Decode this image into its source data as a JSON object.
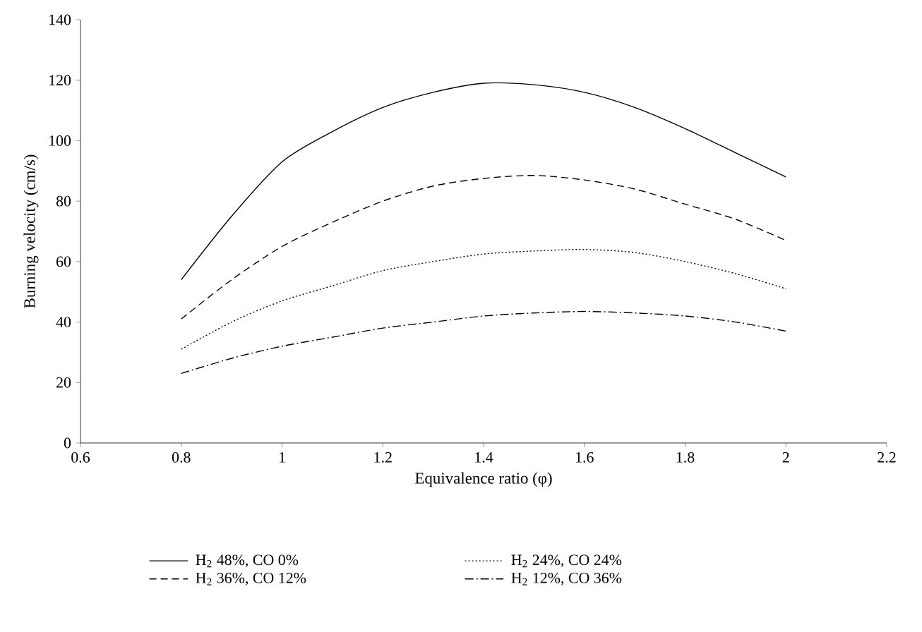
{
  "chart_data": {
    "type": "line",
    "xlabel": "Equivalence ratio (φ)",
    "ylabel": "Burning velocity (cm/s)",
    "x": [
      0.8,
      0.9,
      1.0,
      1.1,
      1.2,
      1.3,
      1.4,
      1.5,
      1.6,
      1.7,
      1.8,
      1.9,
      2.0
    ],
    "series": [
      {
        "name": "H$_{2}$ 48%, CO 0%",
        "color": "#000000",
        "line_style": "solid",
        "values": [
          54,
          75,
          93,
          103,
          111,
          116,
          119,
          118.5,
          116,
          111,
          104,
          96,
          88
        ]
      },
      {
        "name": "H$_{2}$ 36%, CO 12%",
        "color": "#000000",
        "line_style": "dashed",
        "values": [
          41,
          54,
          65,
          73,
          80,
          85,
          87.5,
          88.5,
          87,
          84,
          79,
          74,
          67
        ]
      },
      {
        "name": "H$_{2}$ 24%, CO 24%",
        "color": "#000000",
        "line_style": "dotted",
        "values": [
          31,
          40,
          47,
          52,
          57,
          60,
          62.5,
          63.5,
          64,
          63,
          60,
          56,
          51
        ]
      },
      {
        "name": "H$_{2}$ 12%, CO 36%",
        "color": "#000000",
        "line_style": "dashdot",
        "values": [
          23,
          28,
          32,
          35,
          38,
          40,
          42,
          43,
          43.5,
          43,
          42,
          40,
          37
        ]
      }
    ],
    "xlim": [
      0.6,
      2.2
    ],
    "ylim": [
      0,
      140
    ],
    "xticks": [
      0.6,
      0.8,
      1,
      1.2,
      1.4,
      1.6,
      1.8,
      2,
      2.2
    ],
    "yticks": [
      0,
      20,
      40,
      60,
      80,
      100,
      120,
      140
    ],
    "grid": false,
    "legend": "bottom",
    "marker": "none"
  }
}
